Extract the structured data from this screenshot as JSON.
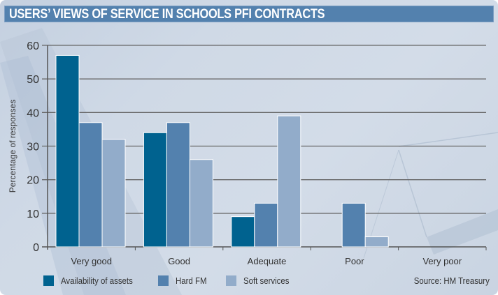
{
  "title": "USERS’ VIEWS OF SERVICE IN SCHOOLS PFI CONTRACTS",
  "source": "Source: HM Treasury",
  "chart_data": {
    "type": "bar",
    "title": "USERS’ VIEWS OF SERVICE IN SCHOOLS PFI CONTRACTS",
    "xlabel": "",
    "ylabel": "Percentage of responses",
    "ylim": [
      0,
      60
    ],
    "yticks": [
      0,
      10,
      20,
      30,
      40,
      50,
      60
    ],
    "grid": true,
    "legend_position": "bottom-left",
    "categories": [
      "Very good",
      "Good",
      "Adequate",
      "Poor",
      "Very poor"
    ],
    "series": [
      {
        "name": "Availability of assets",
        "color": "#00628f",
        "values": [
          57,
          34,
          9,
          0,
          0
        ]
      },
      {
        "name": "Hard FM",
        "color": "#5381ae",
        "values": [
          37,
          37,
          13,
          13,
          0
        ]
      },
      {
        "name": "Soft services",
        "color": "#92acca",
        "values": [
          32,
          26,
          39,
          3,
          0
        ]
      }
    ]
  }
}
